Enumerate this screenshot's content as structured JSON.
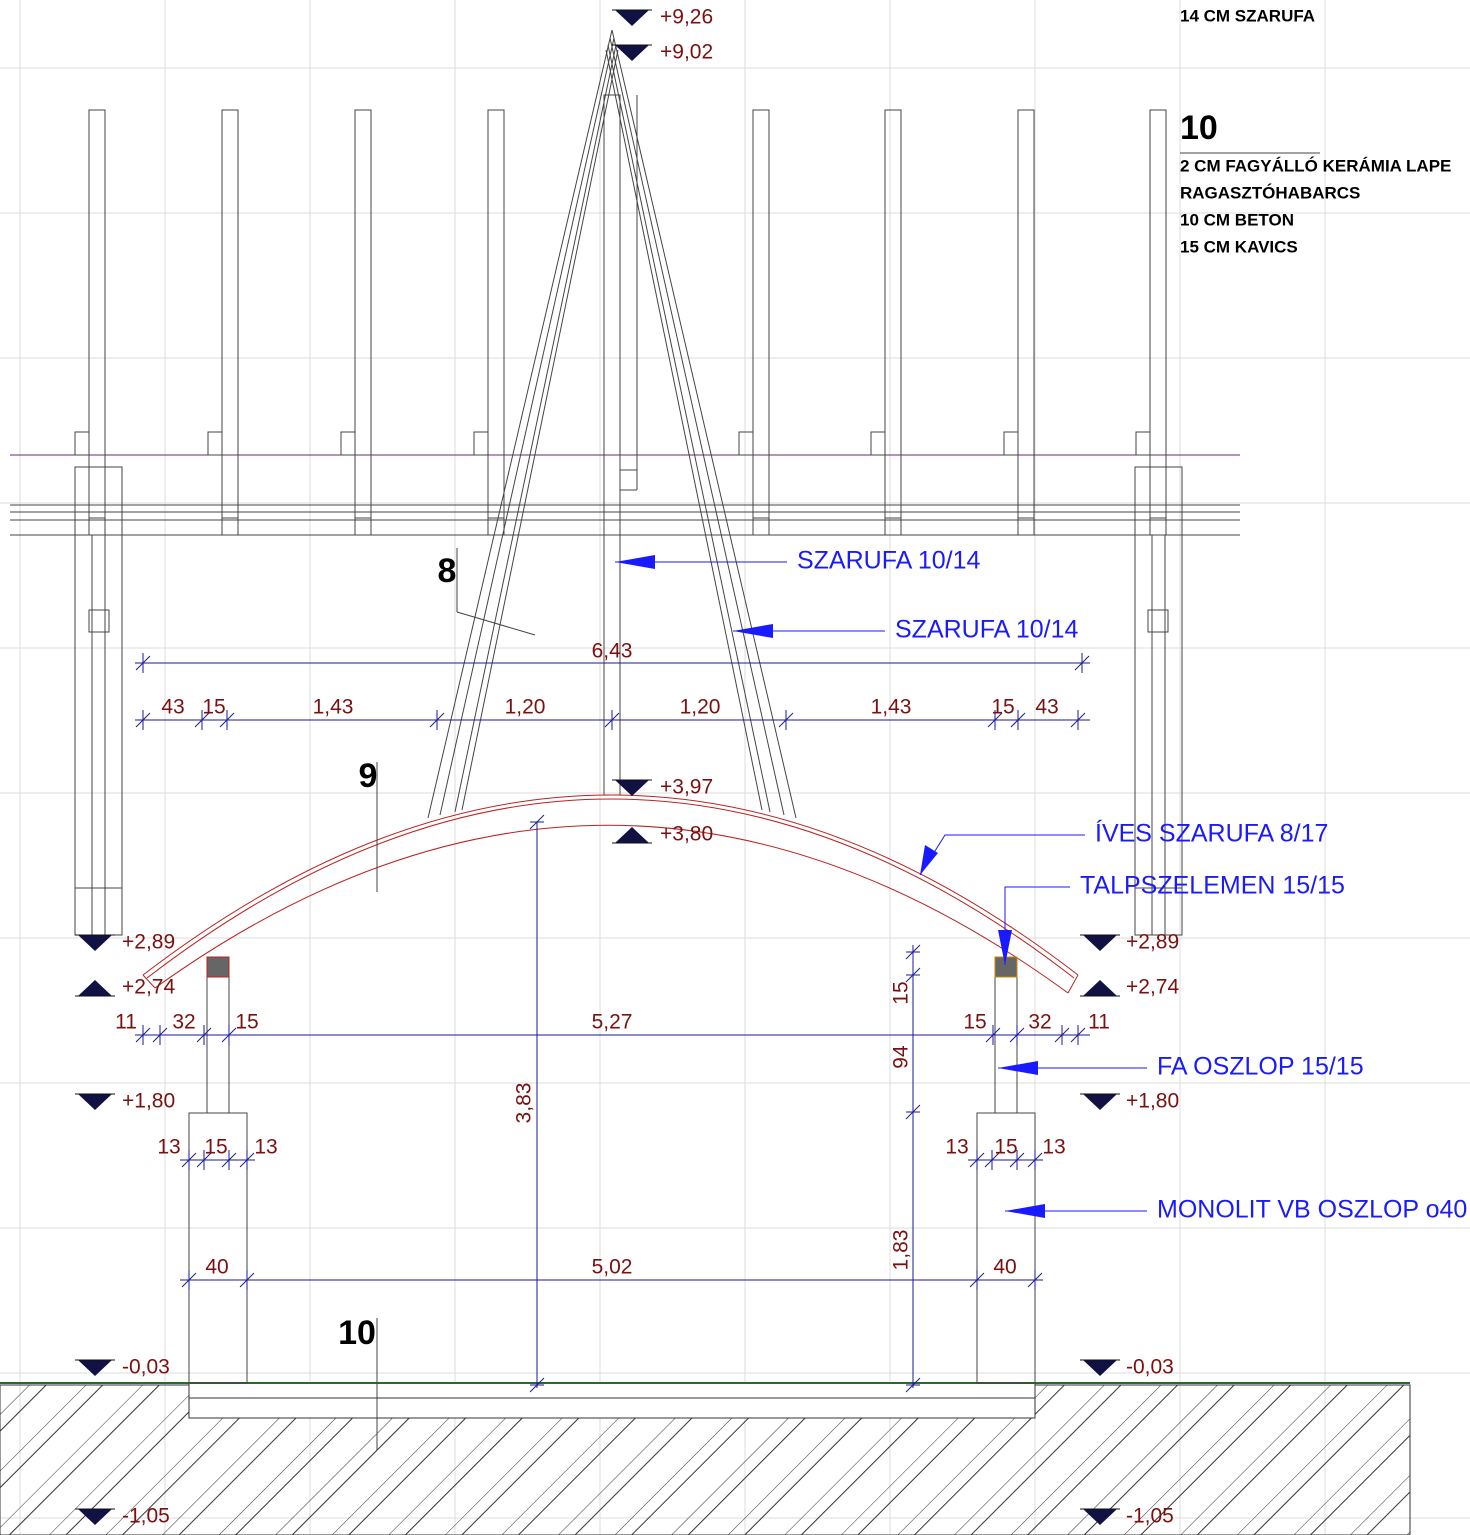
{
  "levels": [
    "+9,26",
    "+9,02",
    "+3,97",
    "+3,80",
    "+2,89",
    "+2,74",
    "+2,89",
    "+2,74",
    "+1,80",
    "+1,80",
    "-0,03",
    "-0,03",
    "-1,05",
    "-1,05"
  ],
  "layers": {
    "top": "14 CM SZARUFA",
    "number": "10",
    "lines": [
      "2 CM FAGYÁLLÓ KERÁMIA LAPE",
      "RAGASZTÓHABARCS",
      "10 CM BETON",
      "15 CM KAVICS"
    ]
  },
  "sections": [
    "8",
    "9",
    "10"
  ],
  "callouts": [
    "SZARUFA 10/14",
    "SZARUFA 10/14",
    "ÍVES SZARUFA 8/17",
    "TALPSZELEMEN 15/15",
    "FA OSZLOP 15/15",
    "MONOLIT VB OSZLOP o40"
  ],
  "dimensions": {
    "overall": "6,43",
    "rafters": [
      "43",
      "15",
      "1,43",
      "1,20",
      "1,20",
      "1,43",
      "15",
      "43"
    ],
    "posts": [
      "11",
      "32",
      "15",
      "5,27",
      "15",
      "32",
      "11"
    ],
    "base_left": [
      "13",
      "15",
      "13"
    ],
    "base_right": [
      "13",
      "15",
      "13"
    ],
    "foot": [
      "40",
      "5,02",
      "40"
    ],
    "vertical": [
      "3,83",
      "15",
      "94",
      "1,83"
    ]
  }
}
